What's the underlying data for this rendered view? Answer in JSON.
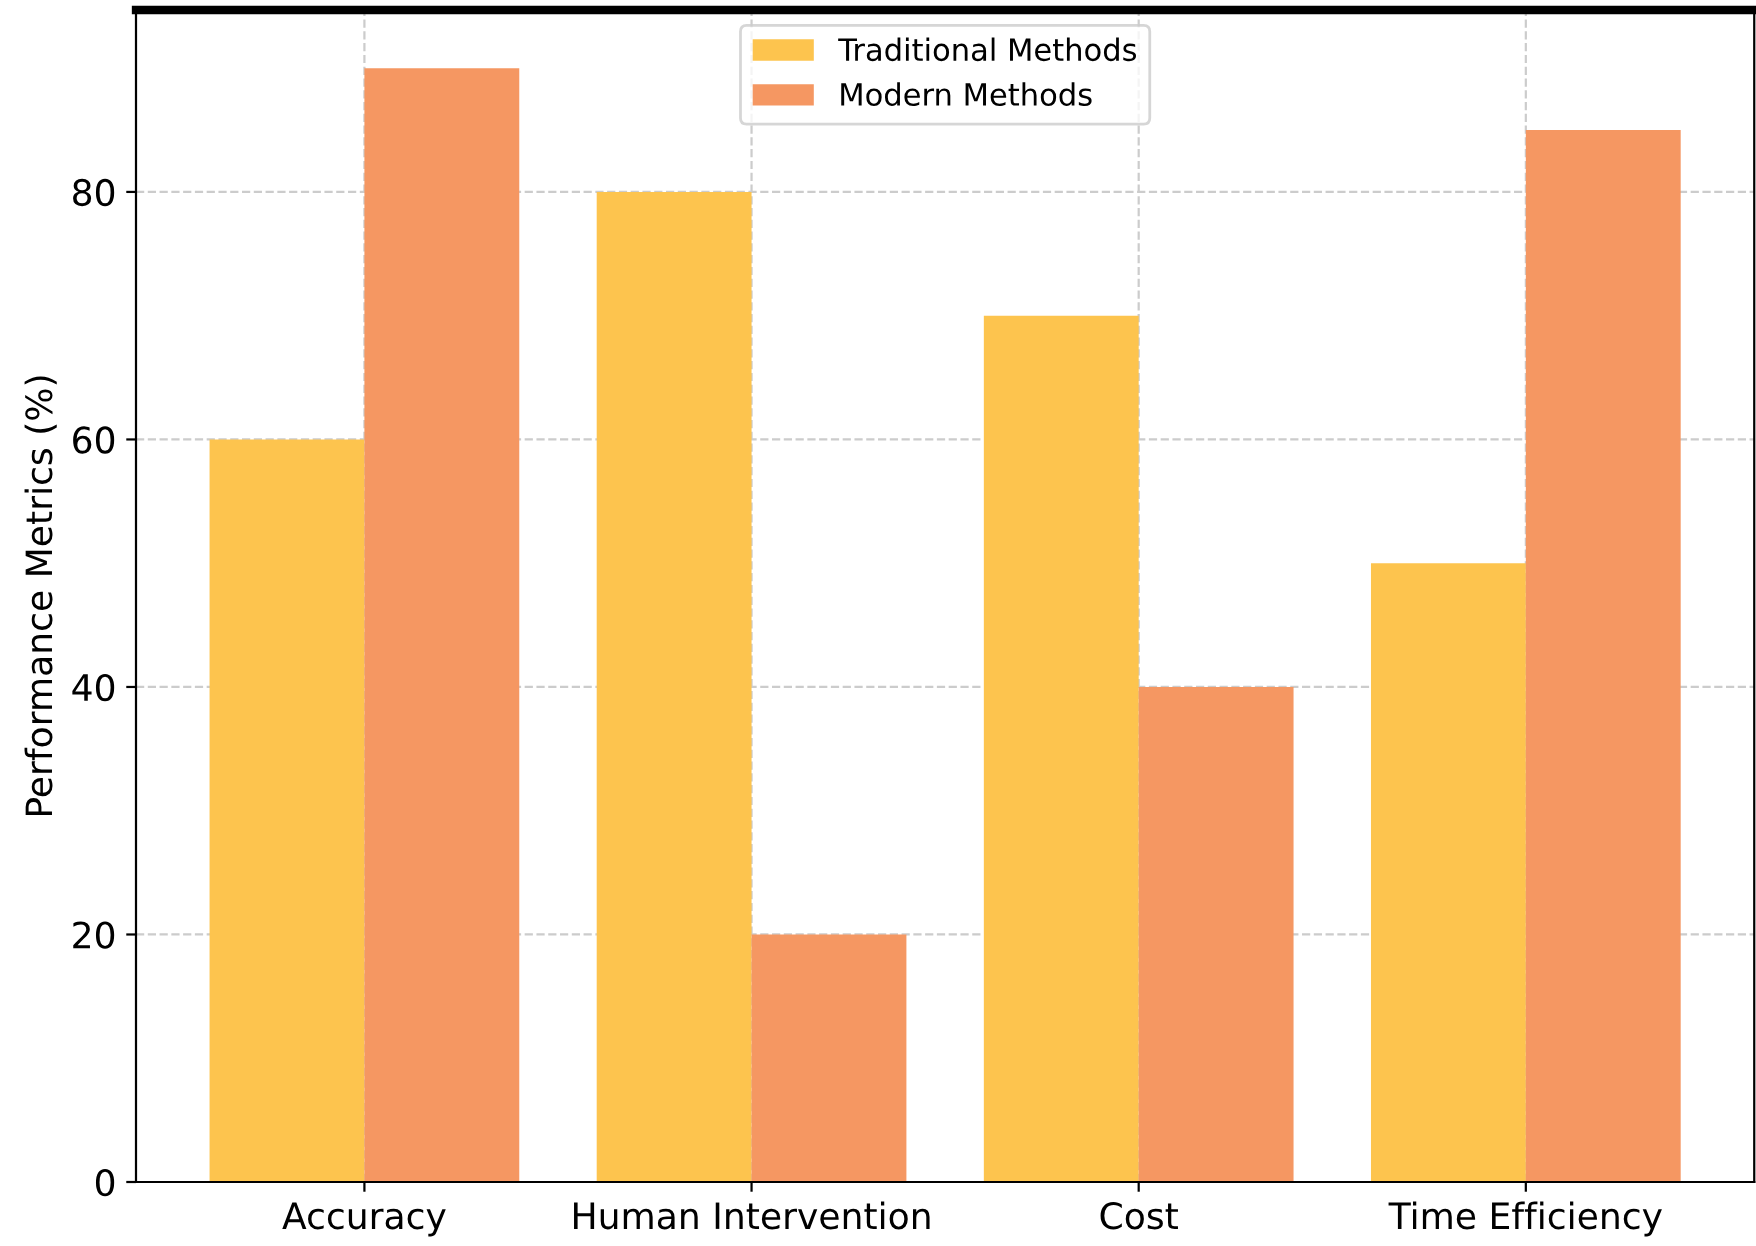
{
  "chart_data": {
    "type": "bar",
    "ylabel": "Performance Metrics (%)",
    "categories": [
      "Accuracy",
      "Human Intervention",
      "Cost",
      "Time Efficiency"
    ],
    "series": [
      {
        "name": "Traditional Methods",
        "color": "#fdc44e",
        "values": [
          60,
          80,
          70,
          50
        ]
      },
      {
        "name": "Modern Methods",
        "color": "#f59762",
        "values": [
          90,
          20,
          40,
          85
        ]
      }
    ],
    "ylim": [
      0,
      94.7
    ],
    "yticks": [
      0,
      20,
      40,
      60,
      80
    ],
    "grid": true,
    "legend": "top"
  }
}
